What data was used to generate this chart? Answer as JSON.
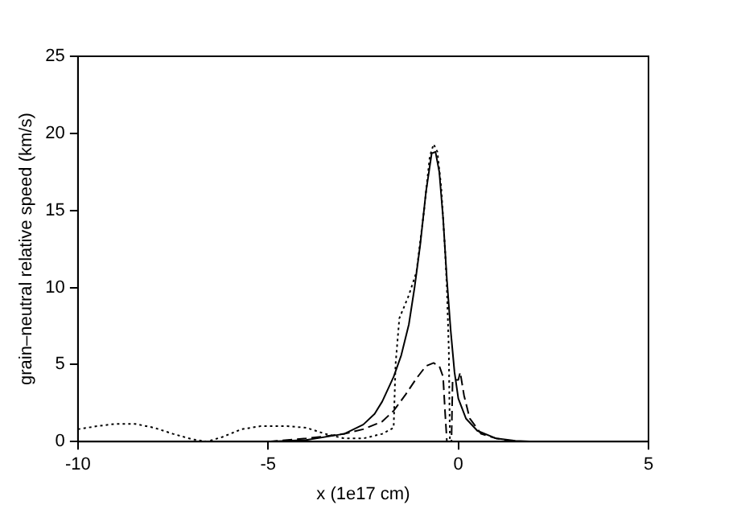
{
  "chart_data": {
    "type": "line",
    "xlabel": "x (1e17 cm)",
    "ylabel": "grain–neutral relative speed (km/s)",
    "xlim": [
      -10,
      5
    ],
    "ylim": [
      0,
      25
    ],
    "xticks": [
      -10,
      -5,
      0,
      5
    ],
    "yticks": [
      0,
      5,
      10,
      15,
      20,
      25
    ],
    "grid": false,
    "legend": false,
    "marker": "none",
    "series": [
      {
        "color": "#000000",
        "line_style": "solid",
        "x": [
          -5,
          -4,
          -3,
          -2.5,
          -2.2,
          -2,
          -1.7,
          -1.5,
          -1.3,
          -1.15,
          -1,
          -0.85,
          -0.7,
          -0.6,
          -0.5,
          -0.4,
          -0.3,
          -0.2,
          -0.1,
          0,
          0.2,
          0.5,
          1,
          1.5,
          2
        ],
        "values": [
          0,
          0.1,
          0.5,
          1.1,
          1.8,
          2.6,
          4.2,
          5.6,
          7.6,
          10,
          12.8,
          16.2,
          18.7,
          18.8,
          17.5,
          14.5,
          10.5,
          7.2,
          4.5,
          2.8,
          1.5,
          0.7,
          0.2,
          0.05,
          0
        ]
      },
      {
        "color": "#000000",
        "line_style": "dashed",
        "x": [
          -5,
          -4,
          -3,
          -2.5,
          -2,
          -1.7,
          -1.4,
          -1.1,
          -0.85,
          -0.65,
          -0.5,
          -0.4,
          -0.35,
          -0.3,
          -0.18,
          -0.15,
          0,
          0.05,
          0.15,
          0.3,
          0.6,
          1,
          1.5
        ],
        "values": [
          0,
          0.2,
          0.5,
          0.8,
          1.3,
          2,
          3,
          4.1,
          4.9,
          5.1,
          4.9,
          4.2,
          2,
          0,
          0,
          4,
          4,
          4.5,
          3,
          1.5,
          0.5,
          0.2,
          0
        ]
      },
      {
        "color": "#000000",
        "line_style": "dotted",
        "x": [
          -10,
          -9.5,
          -9,
          -8.5,
          -8,
          -7.5,
          -7,
          -6.6,
          -6.2,
          -5.7,
          -5.2,
          -4.5,
          -4,
          -3.5,
          -3,
          -2.5,
          -2,
          -1.7,
          -1.65,
          -1.55,
          -1.3,
          -1.1,
          -0.9,
          -0.75,
          -0.65,
          -0.55,
          -0.45,
          -0.35,
          -0.3,
          -0.25,
          -0.22
        ],
        "values": [
          0.8,
          1,
          1.15,
          1.15,
          0.9,
          0.5,
          0.15,
          0,
          0.3,
          0.8,
          1,
          1,
          0.9,
          0.5,
          0.2,
          0.2,
          0.5,
          0.9,
          5,
          8,
          9.5,
          11,
          15,
          18.5,
          19.3,
          18.8,
          16.5,
          12.5,
          10,
          6,
          0
        ]
      }
    ]
  }
}
